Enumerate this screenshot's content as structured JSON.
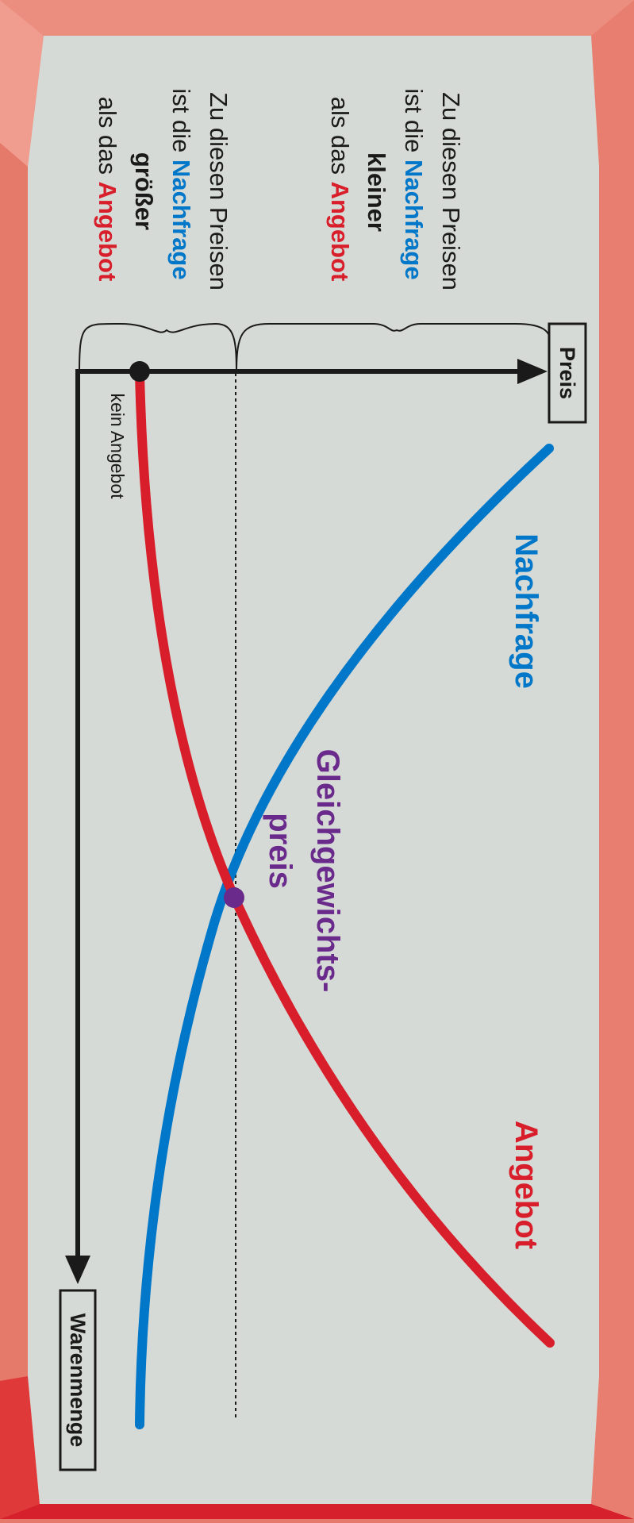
{
  "diagram": {
    "x_axis": {
      "label": "Preis"
    },
    "y_axis": {
      "label": "Warenmenge"
    },
    "curves": {
      "demand": {
        "label": "Nachfrage",
        "color": "#0077c8"
      },
      "supply": {
        "label": "Angebot",
        "color": "#d81e2a"
      }
    },
    "equilibrium": {
      "line1": "Gleichgewichts-",
      "line2": "preis",
      "color": "#6a2a8c"
    },
    "no_supply_label": "kein Angebot",
    "region_high": {
      "line1": "Zu diesen Preisen",
      "line2_prefix": "ist die ",
      "line2_word": "Nachfrage",
      "line3": "kleiner",
      "line4_prefix": "als das ",
      "line4_word": "Angebot"
    },
    "region_low": {
      "line1": "Zu diesen Preisen",
      "line2_prefix": "ist die ",
      "line2_word": "Nachfrage",
      "line3": "größer",
      "line4_prefix": "als das ",
      "line4_word": "Angebot"
    },
    "colors": {
      "panel": "#d6dad6",
      "frame": "#e5796a",
      "axis": "#1a1a1a"
    }
  }
}
